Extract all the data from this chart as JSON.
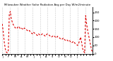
{
  "title": "Milwaukee Weather Solar Radiation Avg per Day W/m2/minute",
  "line_color": "#dd0000",
  "background_color": "#ffffff",
  "grid_color": "#999999",
  "ylim": [
    0,
    280
  ],
  "yticks": [
    0,
    50,
    100,
    150,
    200,
    250
  ],
  "ytick_labels": [
    "0",
    "50",
    "100",
    "150",
    "200",
    "250"
  ],
  "values": [
    180,
    130,
    70,
    30,
    10,
    5,
    20,
    240,
    255,
    210,
    190,
    175,
    165,
    155,
    160,
    155,
    165,
    160,
    150,
    155,
    150,
    145,
    155,
    150,
    145,
    140,
    135,
    140,
    130,
    125,
    120,
    130,
    125,
    120,
    115,
    110,
    120,
    115,
    110,
    115,
    120,
    115,
    110,
    105,
    115,
    120,
    115,
    110,
    105,
    100,
    105,
    110,
    105,
    100,
    95,
    105,
    100,
    95,
    90,
    85,
    90,
    95,
    85,
    80,
    85,
    80,
    75,
    80,
    70,
    65,
    70,
    75,
    65,
    60,
    55,
    50,
    60,
    80,
    100,
    70,
    30,
    15,
    5,
    230,
    180,
    140,
    110,
    80,
    50,
    20,
    10
  ],
  "n_grid_lines": 13,
  "tick_fontsize": 2.8,
  "title_fontsize": 2.8
}
